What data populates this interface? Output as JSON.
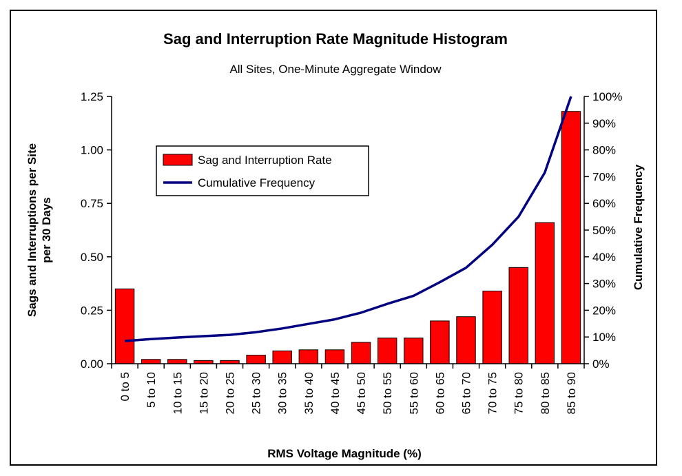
{
  "chart_data": {
    "type": "bar",
    "title": "Sag and Interruption Rate Magnitude Histogram",
    "subtitle": "All Sites, One-Minute Aggregate Window",
    "xlabel": "RMS Voltage Magnitude (%)",
    "ylabel_left_line1": "Sags and Interruptions per Site",
    "ylabel_left_line2": "per 30 Days",
    "ylabel_right": "Cumulative Frequency",
    "ylim": [
      0,
      1.25
    ],
    "y2lim": [
      0,
      100
    ],
    "yticks": [
      "0.00",
      "0.25",
      "0.50",
      "0.75",
      "1.00",
      "1.25"
    ],
    "y2ticks": [
      "0%",
      "10%",
      "20%",
      "30%",
      "40%",
      "50%",
      "60%",
      "70%",
      "80%",
      "90%",
      "100%"
    ],
    "categories": [
      "0 to 5",
      "5 to 10",
      "10 to 15",
      "15 to 20",
      "20 to 25",
      "25 to 30",
      "30 to 35",
      "35 to 40",
      "40 to 45",
      "45 to 50",
      "50 to 55",
      "55 to 60",
      "60 to 65",
      "65 to 70",
      "70 to 75",
      "75 to 80",
      "80 to 85",
      "85 to 90"
    ],
    "series": [
      {
        "name": "Sag and Interruption Rate",
        "type": "bar",
        "axis": "left",
        "color": "#ff0000",
        "values": [
          0.35,
          0.02,
          0.02,
          0.015,
          0.015,
          0.04,
          0.06,
          0.065,
          0.065,
          0.1,
          0.12,
          0.12,
          0.2,
          0.22,
          0.34,
          0.45,
          0.66,
          1.18
        ]
      },
      {
        "name": "Cumulative Frequency",
        "type": "line",
        "axis": "right",
        "color": "#000080",
        "values": [
          8.5,
          9.2,
          9.8,
          10.3,
          10.8,
          11.8,
          13.2,
          14.9,
          16.6,
          19.1,
          22.4,
          25.4,
          30.5,
          35.9,
          44.5,
          55.0,
          71.5,
          100
        ]
      }
    ],
    "legend": "top-left",
    "grid": false
  }
}
